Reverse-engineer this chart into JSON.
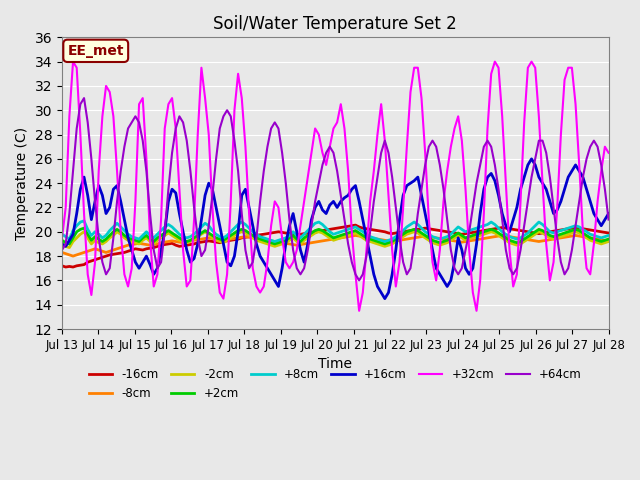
{
  "title": "Soil/Water Temperature Set 2",
  "xlabel": "Time",
  "ylabel": "Temperature (C)",
  "ylim": [
    12,
    36
  ],
  "yticks": [
    12,
    14,
    16,
    18,
    20,
    22,
    24,
    26,
    28,
    30,
    32,
    34,
    36
  ],
  "bg_color": "#e8e8e8",
  "plot_bg": "#e8e8e8",
  "annotation": "EE_met",
  "x_labels": [
    "Jul 13",
    "Jul 14",
    "Jul 15",
    "Jul 16",
    "Jul 17",
    "Jul 18",
    "Jul 19",
    "Jul 20",
    "Jul 21",
    "Jul 22",
    "Jul 23",
    "Jul 24",
    "Jul 25",
    "Jul 26",
    "Jul 27",
    "Jul 28"
  ],
  "series": {
    "-16cm": {
      "color": "#cc0000",
      "lw": 2.0,
      "values": [
        17.2,
        17.1,
        17.15,
        17.1,
        17.2,
        17.25,
        17.3,
        17.5,
        17.6,
        17.7,
        17.8,
        17.9,
        18.0,
        18.1,
        18.15,
        18.2,
        18.25,
        18.3,
        18.4,
        18.5,
        18.6,
        18.55,
        18.5,
        18.6,
        18.65,
        18.7,
        18.8,
        18.9,
        18.95,
        19.0,
        19.05,
        18.9,
        18.8,
        18.85,
        18.9,
        18.95,
        19.0,
        19.1,
        19.15,
        19.2,
        19.25,
        19.2,
        19.15,
        19.1,
        19.2,
        19.25,
        19.3,
        19.35,
        19.4,
        19.5,
        19.55,
        19.6,
        19.65,
        19.7,
        19.75,
        19.8,
        19.85,
        19.9,
        19.95,
        20.0,
        19.95,
        19.9,
        19.85,
        19.8,
        19.75,
        19.8,
        19.85,
        19.9,
        19.95,
        20.0,
        20.05,
        20.1,
        20.15,
        20.2,
        20.25,
        20.3,
        20.35,
        20.4,
        20.45,
        20.5,
        20.55,
        20.4,
        20.3,
        20.25,
        20.2,
        20.15,
        20.1,
        20.05,
        20.0,
        19.9,
        19.85,
        19.9,
        19.95,
        20.0,
        20.05,
        20.1,
        20.15,
        20.2,
        20.25,
        20.3,
        20.25,
        20.2,
        20.15,
        20.1,
        20.05,
        20.0,
        19.95,
        19.9,
        19.85,
        19.8,
        19.85,
        19.9,
        19.95,
        20.0,
        20.05,
        20.1,
        20.15,
        20.2,
        20.25,
        20.3,
        20.35,
        20.3,
        20.25,
        20.2,
        20.15,
        20.1,
        20.05,
        20.0,
        19.95,
        19.9,
        19.85,
        19.9,
        19.95,
        20.0,
        20.05,
        20.1,
        20.15,
        20.2,
        20.25,
        20.3,
        20.35,
        20.3,
        20.25,
        20.2,
        20.15,
        20.1,
        20.05,
        20.0,
        19.95,
        19.9
      ]
    },
    "-8cm": {
      "color": "#ff8000",
      "lw": 2.0,
      "values": [
        18.3,
        18.2,
        18.1,
        18.0,
        18.1,
        18.2,
        18.3,
        18.4,
        18.5,
        18.6,
        18.5,
        18.4,
        18.3,
        18.4,
        18.5,
        18.6,
        18.7,
        18.8,
        18.9,
        18.95,
        19.0,
        19.05,
        19.0,
        18.95,
        18.9,
        18.95,
        19.0,
        19.1,
        19.15,
        19.2,
        19.25,
        19.2,
        19.15,
        19.1,
        19.2,
        19.25,
        19.3,
        19.35,
        19.4,
        19.45,
        19.5,
        19.45,
        19.4,
        19.35,
        19.3,
        19.35,
        19.4,
        19.45,
        19.5,
        19.55,
        19.6,
        19.55,
        19.5,
        19.45,
        19.4,
        19.35,
        19.3,
        19.25,
        19.2,
        19.15,
        19.1,
        19.05,
        19.0,
        18.95,
        18.9,
        18.95,
        19.0,
        19.05,
        19.1,
        19.15,
        19.2,
        19.25,
        19.3,
        19.35,
        19.4,
        19.45,
        19.5,
        19.55,
        19.6,
        19.65,
        19.7,
        19.65,
        19.6,
        19.55,
        19.5,
        19.45,
        19.4,
        19.35,
        19.3,
        19.25,
        19.2,
        19.25,
        19.3,
        19.35,
        19.4,
        19.45,
        19.5,
        19.55,
        19.6,
        19.65,
        19.6,
        19.55,
        19.5,
        19.45,
        19.4,
        19.35,
        19.3,
        19.25,
        19.2,
        19.15,
        19.2,
        19.25,
        19.3,
        19.35,
        19.4,
        19.45,
        19.5,
        19.55,
        19.6,
        19.65,
        19.7,
        19.65,
        19.6,
        19.55,
        19.5,
        19.45,
        19.4,
        19.35,
        19.3,
        19.25,
        19.2,
        19.25,
        19.3,
        19.35,
        19.4,
        19.45,
        19.5,
        19.55,
        19.6,
        19.65,
        19.7,
        19.65,
        19.6,
        19.55,
        19.5,
        19.45,
        19.4,
        19.35,
        19.3,
        19.25
      ]
    },
    "-2cm": {
      "color": "#cccc00",
      "lw": 2.0,
      "values": [
        19.0,
        18.8,
        18.7,
        19.2,
        19.5,
        19.8,
        20.0,
        19.5,
        19.0,
        19.3,
        19.1,
        19.0,
        19.2,
        19.5,
        19.7,
        20.0,
        19.8,
        19.5,
        19.3,
        19.2,
        19.1,
        19.0,
        19.3,
        19.5,
        19.2,
        19.0,
        19.3,
        19.5,
        19.7,
        19.9,
        19.7,
        19.5,
        19.3,
        19.2,
        19.1,
        19.2,
        19.4,
        19.6,
        19.8,
        20.0,
        19.8,
        19.5,
        19.3,
        19.2,
        19.1,
        19.3,
        19.5,
        19.7,
        19.9,
        20.0,
        19.9,
        19.7,
        19.5,
        19.3,
        19.2,
        19.1,
        19.0,
        18.9,
        18.8,
        18.9,
        19.0,
        19.1,
        19.3,
        19.5,
        19.2,
        19.0,
        19.3,
        19.5,
        19.7,
        19.9,
        20.0,
        19.9,
        19.7,
        19.5,
        19.3,
        19.4,
        19.5,
        19.6,
        19.7,
        19.8,
        19.9,
        19.7,
        19.5,
        19.3,
        19.2,
        19.1,
        19.0,
        18.9,
        18.8,
        18.9,
        19.0,
        19.2,
        19.4,
        19.6,
        19.8,
        19.9,
        20.0,
        19.9,
        19.7,
        19.5,
        19.3,
        19.1,
        19.0,
        18.9,
        19.0,
        19.1,
        19.3,
        19.5,
        19.7,
        19.5,
        19.3,
        19.4,
        19.5,
        19.6,
        19.7,
        19.8,
        19.9,
        20.0,
        19.9,
        19.7,
        19.5,
        19.3,
        19.1,
        19.0,
        18.9,
        19.0,
        19.2,
        19.4,
        19.6,
        19.8,
        20.0,
        19.9,
        19.7,
        19.5,
        19.4,
        19.5,
        19.6,
        19.7,
        19.8,
        19.9,
        20.0,
        19.9,
        19.7,
        19.5,
        19.3,
        19.2,
        19.1,
        19.0,
        19.1,
        19.2
      ]
    },
    "+2cm": {
      "color": "#00cc00",
      "lw": 2.0,
      "values": [
        19.3,
        19.1,
        19.0,
        19.5,
        20.0,
        20.2,
        20.3,
        19.8,
        19.3,
        19.6,
        19.4,
        19.2,
        19.4,
        19.7,
        20.0,
        20.2,
        20.0,
        19.7,
        19.5,
        19.4,
        19.3,
        19.2,
        19.5,
        19.7,
        19.4,
        19.2,
        19.5,
        19.7,
        19.9,
        20.1,
        19.9,
        19.7,
        19.5,
        19.3,
        19.2,
        19.3,
        19.5,
        19.7,
        19.9,
        20.1,
        19.9,
        19.7,
        19.5,
        19.4,
        19.3,
        19.5,
        19.7,
        19.9,
        20.1,
        20.2,
        20.1,
        19.9,
        19.7,
        19.5,
        19.4,
        19.3,
        19.2,
        19.1,
        19.0,
        19.1,
        19.2,
        19.3,
        19.5,
        19.7,
        19.4,
        19.2,
        19.5,
        19.7,
        19.9,
        20.1,
        20.2,
        20.1,
        19.9,
        19.7,
        19.5,
        19.6,
        19.7,
        19.8,
        19.9,
        20.0,
        20.1,
        19.9,
        19.7,
        19.5,
        19.4,
        19.3,
        19.2,
        19.1,
        19.0,
        19.1,
        19.2,
        19.4,
        19.6,
        19.8,
        20.0,
        20.1,
        20.2,
        20.1,
        19.9,
        19.7,
        19.5,
        19.3,
        19.2,
        19.1,
        19.2,
        19.3,
        19.5,
        19.7,
        19.9,
        19.7,
        19.5,
        19.6,
        19.7,
        19.8,
        19.9,
        20.0,
        20.1,
        20.2,
        20.1,
        19.9,
        19.7,
        19.5,
        19.3,
        19.2,
        19.1,
        19.2,
        19.4,
        19.6,
        19.8,
        20.0,
        20.2,
        20.1,
        19.9,
        19.7,
        19.6,
        19.7,
        19.8,
        19.9,
        20.0,
        20.1,
        20.2,
        20.1,
        19.9,
        19.7,
        19.5,
        19.4,
        19.3,
        19.2,
        19.3,
        19.4
      ]
    },
    "+8cm": {
      "color": "#00cccc",
      "lw": 2.0,
      "values": [
        19.8,
        19.6,
        19.4,
        20.1,
        20.5,
        20.8,
        20.9,
        20.2,
        19.7,
        20.0,
        19.8,
        19.5,
        19.7,
        20.1,
        20.4,
        20.7,
        20.4,
        20.1,
        19.8,
        19.6,
        19.5,
        19.4,
        19.7,
        20.0,
        19.7,
        19.5,
        19.8,
        20.1,
        20.4,
        20.6,
        20.4,
        20.1,
        19.8,
        19.6,
        19.5,
        19.6,
        19.8,
        20.1,
        20.4,
        20.7,
        20.5,
        20.1,
        19.8,
        19.6,
        19.5,
        19.7,
        20.0,
        20.3,
        20.6,
        20.8,
        20.6,
        20.3,
        20.0,
        19.8,
        19.6,
        19.5,
        19.4,
        19.3,
        19.2,
        19.3,
        19.4,
        19.5,
        19.7,
        20.0,
        19.7,
        19.5,
        19.8,
        20.1,
        20.4,
        20.7,
        20.8,
        20.6,
        20.3,
        20.0,
        19.8,
        19.9,
        20.0,
        20.1,
        20.2,
        20.3,
        20.4,
        20.2,
        20.0,
        19.8,
        19.6,
        19.5,
        19.4,
        19.3,
        19.2,
        19.3,
        19.4,
        19.6,
        19.8,
        20.1,
        20.4,
        20.6,
        20.8,
        20.6,
        20.3,
        20.0,
        19.8,
        19.6,
        19.5,
        19.4,
        19.5,
        19.6,
        19.8,
        20.1,
        20.4,
        20.2,
        20.0,
        20.1,
        20.2,
        20.3,
        20.4,
        20.5,
        20.6,
        20.8,
        20.6,
        20.3,
        20.0,
        19.8,
        19.6,
        19.5,
        19.4,
        19.5,
        19.7,
        19.9,
        20.2,
        20.5,
        20.8,
        20.6,
        20.3,
        20.0,
        19.9,
        20.0,
        20.1,
        20.2,
        20.3,
        20.4,
        20.5,
        20.4,
        20.2,
        20.0,
        19.8,
        19.7,
        19.6,
        19.5,
        19.6,
        19.7
      ]
    },
    "+16cm": {
      "color": "#0000cc",
      "lw": 2.0,
      "values": [
        19.0,
        18.8,
        19.3,
        19.8,
        21.5,
        23.5,
        24.5,
        23.0,
        21.0,
        22.5,
        23.8,
        23.0,
        21.5,
        22.0,
        23.5,
        23.8,
        22.5,
        21.0,
        19.5,
        18.5,
        17.5,
        17.0,
        17.5,
        18.0,
        17.3,
        16.5,
        17.0,
        18.5,
        20.0,
        22.5,
        23.5,
        23.2,
        21.5,
        20.0,
        18.5,
        17.5,
        17.8,
        19.0,
        21.0,
        23.0,
        24.0,
        23.5,
        22.0,
        20.5,
        19.0,
        17.5,
        17.2,
        18.0,
        20.0,
        23.0,
        23.5,
        22.0,
        20.5,
        19.0,
        18.0,
        17.5,
        17.0,
        16.5,
        16.0,
        15.5,
        17.0,
        19.0,
        20.5,
        21.5,
        20.0,
        18.5,
        17.5,
        19.0,
        21.0,
        22.0,
        22.5,
        21.8,
        21.5,
        22.2,
        22.5,
        22.0,
        22.5,
        22.8,
        23.0,
        23.5,
        23.8,
        22.5,
        21.0,
        19.5,
        18.0,
        16.5,
        15.5,
        15.0,
        14.5,
        15.0,
        16.5,
        18.5,
        21.0,
        23.0,
        23.8,
        24.0,
        24.2,
        24.5,
        23.0,
        21.5,
        20.0,
        18.5,
        17.0,
        16.5,
        16.0,
        15.5,
        16.0,
        17.5,
        19.5,
        18.5,
        17.0,
        16.5,
        17.0,
        19.0,
        21.5,
        23.5,
        24.5,
        24.8,
        24.2,
        23.0,
        21.5,
        20.5,
        20.0,
        21.0,
        22.0,
        23.5,
        24.5,
        25.5,
        26.0,
        25.5,
        24.5,
        24.0,
        23.5,
        22.5,
        21.5,
        21.8,
        22.5,
        23.5,
        24.5,
        25.0,
        25.5,
        25.0,
        24.5,
        23.5,
        22.5,
        21.5,
        21.0,
        20.5,
        21.0,
        21.5
      ]
    },
    "+32cm": {
      "color": "#ff00ff",
      "lw": 1.5,
      "values": [
        19.5,
        22.0,
        29.5,
        34.0,
        33.5,
        28.0,
        21.5,
        16.5,
        14.8,
        17.5,
        25.0,
        29.5,
        32.0,
        31.5,
        29.5,
        25.0,
        20.0,
        16.5,
        15.5,
        17.0,
        22.5,
        30.5,
        31.0,
        26.0,
        19.5,
        15.5,
        16.5,
        21.0,
        28.5,
        30.5,
        31.0,
        28.5,
        23.5,
        18.5,
        15.5,
        16.0,
        21.0,
        28.0,
        33.5,
        31.0,
        28.0,
        22.0,
        17.5,
        15.0,
        14.5,
        16.5,
        22.5,
        30.0,
        33.0,
        31.0,
        27.0,
        21.5,
        17.0,
        15.5,
        15.0,
        15.5,
        17.5,
        20.5,
        22.5,
        22.0,
        19.5,
        17.5,
        17.0,
        17.5,
        18.5,
        20.5,
        22.5,
        24.5,
        26.5,
        28.5,
        28.0,
        26.5,
        25.5,
        27.0,
        28.5,
        29.0,
        30.5,
        28.5,
        25.0,
        20.0,
        16.5,
        13.5,
        15.0,
        18.5,
        22.5,
        25.0,
        28.0,
        30.5,
        27.5,
        23.0,
        18.5,
        15.5,
        17.5,
        22.0,
        27.0,
        31.5,
        33.5,
        33.5,
        31.0,
        26.5,
        21.0,
        17.5,
        16.0,
        18.5,
        22.5,
        25.0,
        27.0,
        28.5,
        29.5,
        27.5,
        23.5,
        18.5,
        15.0,
        13.5,
        16.0,
        21.5,
        28.5,
        33.0,
        34.0,
        33.5,
        29.5,
        24.0,
        18.5,
        15.5,
        16.5,
        22.5,
        29.0,
        33.5,
        34.0,
        33.5,
        29.5,
        24.0,
        19.0,
        16.0,
        17.5,
        22.0,
        28.0,
        32.5,
        33.5,
        33.5,
        30.5,
        25.5,
        20.0,
        17.0,
        16.5,
        19.0,
        22.5,
        25.0,
        27.0,
        26.5
      ]
    },
    "+64cm": {
      "color": "#9900cc",
      "lw": 1.5,
      "values": [
        18.5,
        19.0,
        21.5,
        25.0,
        28.5,
        30.5,
        31.0,
        29.0,
        26.0,
        22.5,
        19.5,
        17.5,
        16.5,
        17.0,
        19.5,
        22.5,
        25.0,
        27.0,
        28.5,
        29.0,
        29.5,
        29.0,
        27.5,
        25.0,
        21.5,
        18.5,
        17.0,
        17.5,
        20.0,
        23.5,
        26.5,
        28.5,
        29.5,
        29.0,
        27.5,
        25.0,
        22.0,
        19.5,
        18.0,
        18.5,
        20.5,
        23.0,
        26.0,
        28.5,
        29.5,
        30.0,
        29.5,
        27.5,
        25.0,
        21.5,
        18.5,
        17.0,
        17.5,
        19.5,
        22.5,
        25.0,
        27.0,
        28.5,
        29.0,
        28.5,
        26.5,
        24.0,
        21.0,
        18.5,
        17.0,
        16.5,
        17.0,
        18.5,
        20.5,
        22.5,
        24.0,
        25.5,
        26.5,
        27.0,
        26.5,
        25.0,
        23.0,
        21.0,
        19.0,
        17.5,
        16.5,
        16.0,
        16.5,
        18.0,
        20.0,
        22.5,
        24.5,
        26.5,
        27.5,
        26.5,
        24.5,
        22.0,
        19.5,
        17.5,
        16.5,
        17.0,
        19.0,
        21.5,
        23.5,
        25.5,
        27.0,
        27.5,
        27.0,
        25.5,
        23.5,
        21.0,
        18.5,
        17.0,
        16.5,
        17.0,
        18.5,
        20.0,
        22.0,
        24.0,
        25.5,
        27.0,
        27.5,
        27.0,
        25.5,
        23.5,
        21.0,
        18.5,
        17.0,
        16.5,
        17.0,
        18.5,
        20.5,
        22.5,
        24.5,
        26.0,
        27.5,
        27.5,
        26.5,
        24.5,
        22.0,
        19.5,
        17.5,
        16.5,
        17.0,
        18.5,
        20.5,
        22.5,
        24.5,
        26.0,
        27.0,
        27.5,
        27.0,
        25.5,
        23.5,
        21.0
      ]
    }
  },
  "n_points": 150,
  "x_tick_positions": [
    0,
    12,
    24,
    36,
    48,
    60,
    72,
    84,
    96,
    108,
    120,
    132,
    144,
    156,
    168,
    180
  ],
  "legend_order": [
    "-16cm",
    "-8cm",
    "-2cm",
    "+2cm",
    "+8cm",
    "+16cm",
    "+32cm",
    "+64cm"
  ],
  "legend_colors": [
    "#cc0000",
    "#ff8000",
    "#cccc00",
    "#00cc00",
    "#00cccc",
    "#0000cc",
    "#ff00ff",
    "#9900cc"
  ]
}
